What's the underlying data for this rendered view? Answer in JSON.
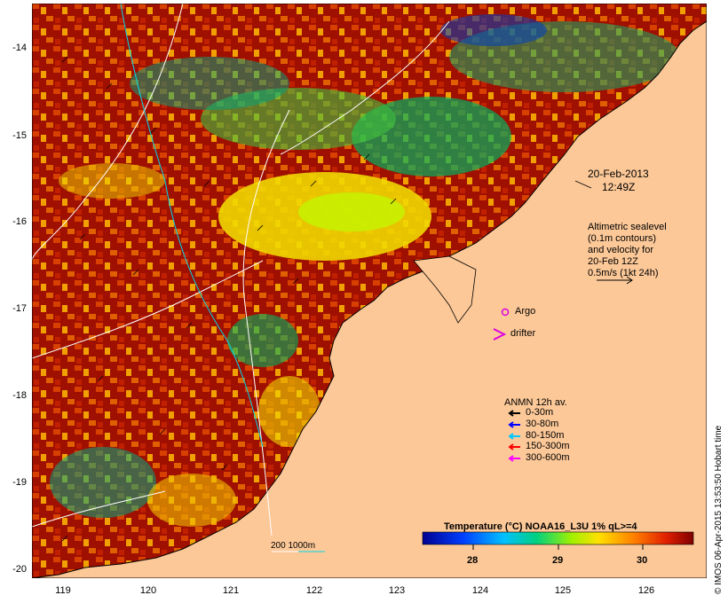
{
  "map": {
    "y_ticks": [
      "-14",
      "-15",
      "-16",
      "-17",
      "-18",
      "-19",
      "-20"
    ],
    "x_ticks": [
      "119",
      "120",
      "121",
      "122",
      "123",
      "124",
      "125",
      "126"
    ],
    "date": "20-Feb-2013",
    "time": "12:49Z",
    "altimetry_note": [
      "Altimetric sealevel",
      "(0.1m contours)",
      "and velocity for",
      "20-Feb 12Z",
      "0.5m/s (1kt 24h)"
    ],
    "argo_label": "Argo",
    "drifter_label": "drifter",
    "anmn_title": "ANMN 12h av.",
    "anmn_legend": [
      {
        "label": "0-30m",
        "color": "#000000"
      },
      {
        "label": "30-80m",
        "color": "#0000ff"
      },
      {
        "label": "80-150m",
        "color": "#00c8ff"
      },
      {
        "label": "150-300m",
        "color": "#ff0000"
      },
      {
        "label": "300-600m",
        "color": "#ff00ff"
      }
    ],
    "depth_label": "200  1000m",
    "colorbar_title": "Temperature (°C) NOAA16_L3U 1% qL>=4",
    "colorbar_ticks": [
      "28",
      "29",
      "30"
    ],
    "credit": "© IMOS 06-Apr-2015 13:53:50 Hobart time",
    "colors": {
      "land": "#fcc898",
      "warm": "#a01000",
      "mid": "#f0d800",
      "cool": "#00b060",
      "cold": "#0020a0"
    }
  }
}
